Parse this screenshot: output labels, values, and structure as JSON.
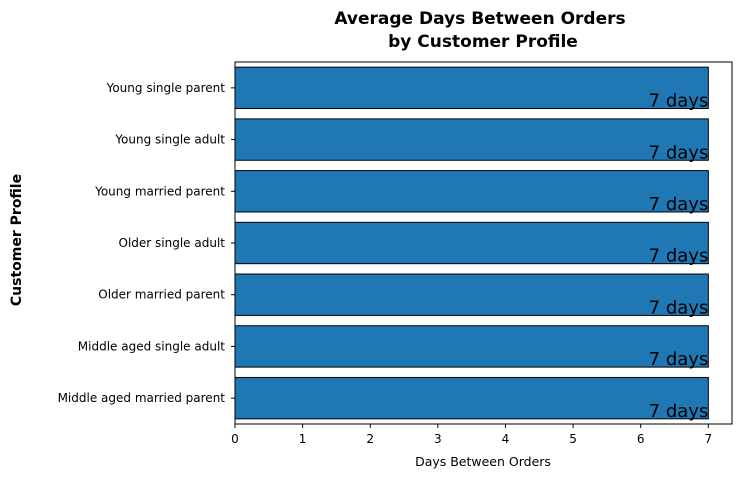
{
  "chart_data": {
    "type": "bar",
    "orientation": "horizontal",
    "title": [
      "Average Days Between Orders",
      "by Customer Profile"
    ],
    "xlabel": "Days Between Orders",
    "ylabel": "Customer Profile",
    "xlim": [
      0,
      7.35
    ],
    "xticks": [
      "0",
      "1",
      "2",
      "3",
      "4",
      "5",
      "6",
      "7"
    ],
    "categories": [
      "Young single parent",
      "Young single adult",
      "Young married parent",
      "Older single adult",
      "Older married parent",
      "Middle aged single adult",
      "Middle aged married parent"
    ],
    "values": [
      7,
      7,
      7,
      7,
      7,
      7,
      7
    ],
    "data_labels": [
      "7 days",
      "7 days",
      "7 days",
      "7 days",
      "7 days",
      "7 days",
      "7 days"
    ],
    "bar_color": "#1f77b4",
    "edge_color": "#000000",
    "grid": false,
    "legend": "none"
  }
}
